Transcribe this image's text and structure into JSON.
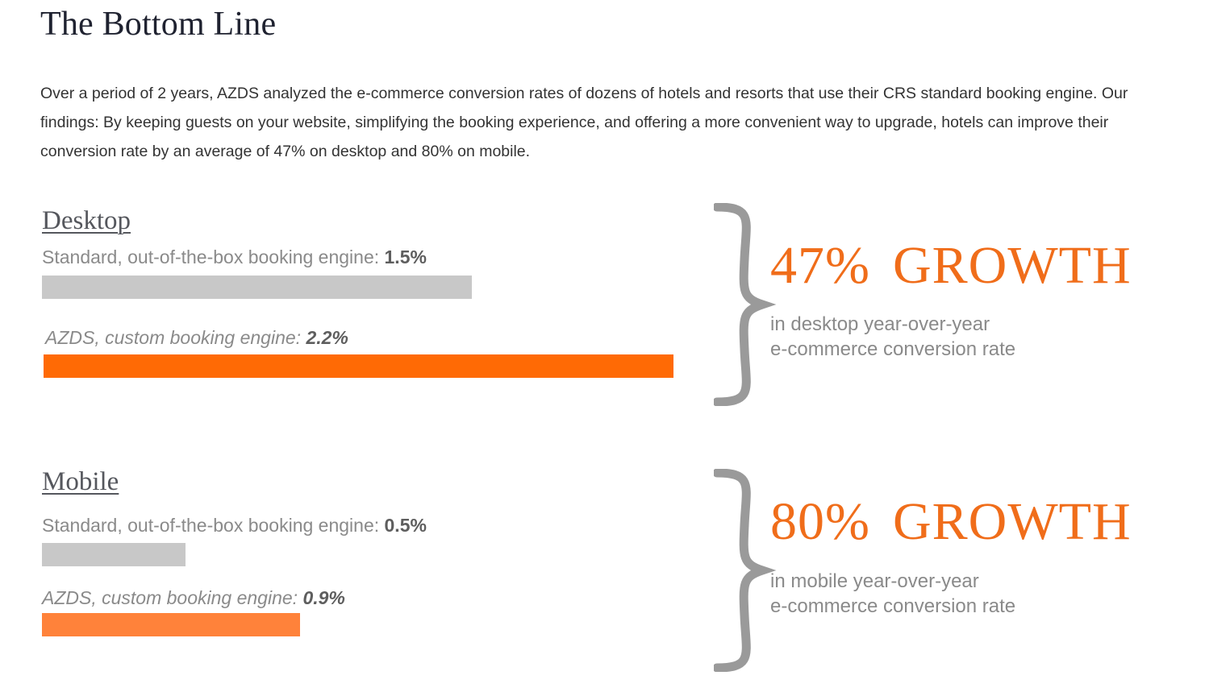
{
  "page": {
    "title": "The Bottom Line",
    "intro": "Over a period of 2 years, AZDS analyzed the e-commerce conversion rates of dozens of hotels and resorts that use their CRS standard booking engine. Our findings: By keeping guests on your website, simplifying the booking experience, and offering a more convenient way to upgrade, hotels can improve their conversion rate by an average of 47% on desktop and 80% on mobile."
  },
  "colors": {
    "standard_bar": "#c8c8c8",
    "custom_bar_desktop": "#ff6a05",
    "custom_bar_mobile": "#ff823a",
    "accent": "#f06d1a",
    "brace": "#9a9a9a"
  },
  "sections": {
    "desktop": {
      "title": "Desktop",
      "standard_label": "Standard, out-of-the-box booking engine:",
      "standard_value": "1.5%",
      "custom_label": "AZDS, custom booking engine:",
      "custom_value": "2.2%",
      "growth_pct": "47%",
      "growth_word": "GROWTH",
      "sub_line1": "in desktop year-over-year",
      "sub_line2": "e-commerce conversion rate"
    },
    "mobile": {
      "title": "Mobile",
      "standard_label": "Standard, out-of-the-box booking engine:",
      "standard_value": "0.5%",
      "custom_label": "AZDS, custom booking engine:",
      "custom_value": "0.9%",
      "growth_pct": "80%",
      "growth_word": "GROWTH",
      "sub_line1": "in mobile year-over-year",
      "sub_line2": "e-commerce conversion rate"
    }
  },
  "chart_data": [
    {
      "type": "bar",
      "orientation": "horizontal",
      "title": "Desktop",
      "categories": [
        "Standard, out-of-the-box booking engine",
        "AZDS, custom booking engine"
      ],
      "values": [
        1.5,
        2.2
      ],
      "unit": "%"
    },
    {
      "type": "bar",
      "orientation": "horizontal",
      "title": "Mobile",
      "categories": [
        "Standard, out-of-the-box booking engine",
        "AZDS, custom booking engine"
      ],
      "values": [
        0.5,
        0.9
      ],
      "unit": "%"
    }
  ]
}
